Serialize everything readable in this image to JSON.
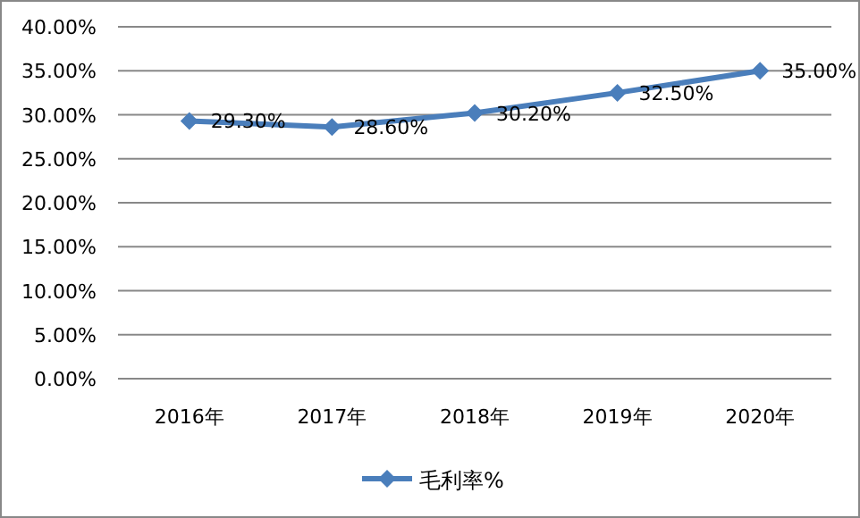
{
  "chart_data": {
    "type": "line",
    "categories": [
      "2016年",
      "2017年",
      "2018年",
      "2019年",
      "2020年"
    ],
    "series": [
      {
        "name": "毛利率%",
        "color": "#4a7ebb",
        "values": [
          29.3,
          28.6,
          30.2,
          32.5,
          35.0
        ],
        "value_labels": [
          "29.30%",
          "28.60%",
          "30.20%",
          "32.50%",
          "35.00%"
        ]
      }
    ],
    "ylim": [
      0,
      40
    ],
    "yticks": [
      {
        "value": 0,
        "label": "0.00%"
      },
      {
        "value": 5,
        "label": "5.00%"
      },
      {
        "value": 10,
        "label": "10.00%"
      },
      {
        "value": 15,
        "label": "15.00%"
      },
      {
        "value": 20,
        "label": "20.00%"
      },
      {
        "value": 25,
        "label": "25.00%"
      },
      {
        "value": 30,
        "label": "30.00%"
      },
      {
        "value": 35,
        "label": "35.00%"
      },
      {
        "value": 40,
        "label": "40.00%"
      }
    ],
    "grid": "y",
    "legend": "bottom",
    "marker": "diamond",
    "line_style": "solid"
  }
}
